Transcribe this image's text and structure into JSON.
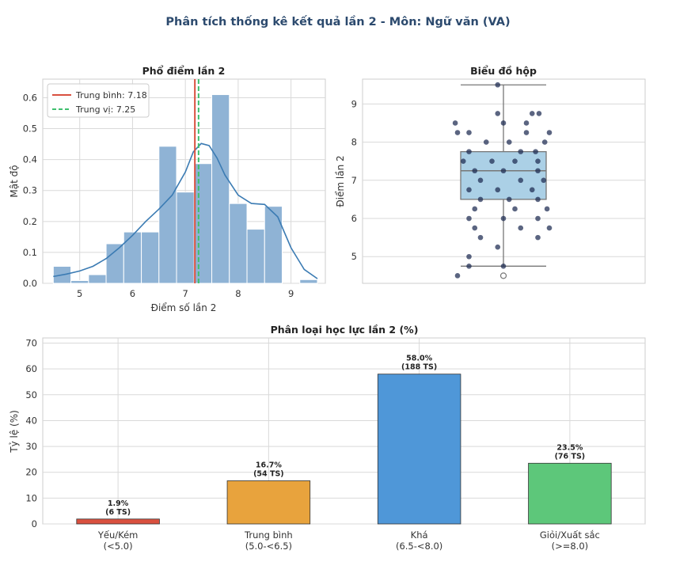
{
  "figure": {
    "suptitle": "Phân tích thống kê kết quả lần 2 - Môn: Ngữ văn (VA)",
    "colors": {
      "suptitle": "#2c4a6e",
      "hist_bar": "#8fb3d5",
      "kde_line": "#3b7bb3",
      "mean_line": "#d9503f",
      "median_line": "#3fbf6e",
      "box_fill": "#abd0e6",
      "dots": "#1c2a50",
      "grid": "#d9d9d9"
    }
  },
  "chart_data": [
    {
      "type": "bar",
      "subtype": "histogram_with_kde",
      "title": "Phổ điểm lần 2",
      "xlabel": "Điểm số lần 2",
      "ylabel": "Mật độ",
      "xlim": [
        4.3,
        9.65
      ],
      "ylim": [
        0,
        0.66
      ],
      "xticks": [
        5,
        6,
        7,
        8,
        9
      ],
      "yticks": [
        0.0,
        0.1,
        0.2,
        0.3,
        0.4,
        0.5,
        0.6
      ],
      "ytick_labels": [
        "0.0",
        "0.1",
        "0.2",
        "0.3",
        "0.4",
        "0.5",
        "0.6"
      ],
      "bins": [
        {
          "x0": 4.5,
          "x1": 4.833,
          "density": 0.055
        },
        {
          "x0": 4.833,
          "x1": 5.167,
          "density": 0.009
        },
        {
          "x0": 5.167,
          "x1": 5.5,
          "density": 0.028
        },
        {
          "x0": 5.5,
          "x1": 5.833,
          "density": 0.128
        },
        {
          "x0": 5.833,
          "x1": 6.167,
          "density": 0.166
        },
        {
          "x0": 6.167,
          "x1": 6.5,
          "density": 0.166
        },
        {
          "x0": 6.5,
          "x1": 6.833,
          "density": 0.443
        },
        {
          "x0": 6.833,
          "x1": 7.167,
          "density": 0.295
        },
        {
          "x0": 7.167,
          "x1": 7.5,
          "density": 0.387
        },
        {
          "x0": 7.5,
          "x1": 7.833,
          "density": 0.61
        },
        {
          "x0": 7.833,
          "x1": 8.167,
          "density": 0.258
        },
        {
          "x0": 8.167,
          "x1": 8.5,
          "density": 0.175
        },
        {
          "x0": 8.5,
          "x1": 8.833,
          "density": 0.249
        },
        {
          "x0": 9.167,
          "x1": 9.5,
          "density": 0.012
        }
      ],
      "kde": {
        "x": [
          4.5,
          4.75,
          5.0,
          5.25,
          5.5,
          5.75,
          6.0,
          6.25,
          6.5,
          6.75,
          7.0,
          7.15,
          7.3,
          7.45,
          7.6,
          7.75,
          8.0,
          8.25,
          8.5,
          8.75,
          9.0,
          9.25,
          9.5
        ],
        "y": [
          0.022,
          0.03,
          0.04,
          0.055,
          0.08,
          0.115,
          0.155,
          0.2,
          0.24,
          0.285,
          0.36,
          0.425,
          0.452,
          0.445,
          0.405,
          0.35,
          0.285,
          0.258,
          0.255,
          0.215,
          0.115,
          0.045,
          0.015
        ]
      },
      "mean": 7.18,
      "median": 7.25,
      "legend": {
        "placement": "top-left",
        "entries": [
          {
            "label": "Trung bình: 7.18",
            "style": "solid",
            "color": "#d9503f"
          },
          {
            "label": "Trung vị: 7.25",
            "style": "dashed",
            "color": "#3fbf6e"
          }
        ]
      },
      "grid": true
    },
    {
      "type": "scatter",
      "subtype": "boxplot_with_strip",
      "title": "Biểu đồ hộp",
      "ylabel": "Điểm lần 2",
      "ylim": [
        4.3,
        9.65
      ],
      "yticks": [
        5,
        6,
        7,
        8,
        9
      ],
      "box": {
        "q1": 6.5,
        "median": 7.25,
        "q3": 7.75,
        "whisker_low": 4.75,
        "whisker_high": 9.5
      },
      "outliers": [
        4.5
      ],
      "points": [
        {
          "offset": -0.05,
          "value": 9.5
        },
        {
          "offset": -0.05,
          "value": 8.75
        },
        {
          "offset": 0.25,
          "value": 8.75
        },
        {
          "offset": 0.31,
          "value": 8.75
        },
        {
          "offset": -0.42,
          "value": 8.5
        },
        {
          "offset": 0.0,
          "value": 8.5
        },
        {
          "offset": 0.2,
          "value": 8.5
        },
        {
          "offset": -0.3,
          "value": 8.25
        },
        {
          "offset": -0.4,
          "value": 8.25
        },
        {
          "offset": 0.4,
          "value": 8.25
        },
        {
          "offset": 0.2,
          "value": 8.25
        },
        {
          "offset": -0.15,
          "value": 8.0
        },
        {
          "offset": 0.05,
          "value": 8.0
        },
        {
          "offset": 0.36,
          "value": 8.0
        },
        {
          "offset": -0.3,
          "value": 7.75
        },
        {
          "offset": 0.15,
          "value": 7.75
        },
        {
          "offset": 0.28,
          "value": 7.75
        },
        {
          "offset": -0.35,
          "value": 7.5
        },
        {
          "offset": -0.1,
          "value": 7.5
        },
        {
          "offset": 0.1,
          "value": 7.5
        },
        {
          "offset": 0.3,
          "value": 7.5
        },
        {
          "offset": -0.25,
          "value": 7.25
        },
        {
          "offset": 0.0,
          "value": 7.25
        },
        {
          "offset": 0.3,
          "value": 7.25
        },
        {
          "offset": -0.2,
          "value": 7.0
        },
        {
          "offset": 0.15,
          "value": 7.0
        },
        {
          "offset": 0.35,
          "value": 7.0
        },
        {
          "offset": -0.3,
          "value": 6.75
        },
        {
          "offset": -0.05,
          "value": 6.75
        },
        {
          "offset": 0.25,
          "value": 6.75
        },
        {
          "offset": -0.2,
          "value": 6.5
        },
        {
          "offset": 0.05,
          "value": 6.5
        },
        {
          "offset": 0.3,
          "value": 6.5
        },
        {
          "offset": -0.25,
          "value": 6.25
        },
        {
          "offset": 0.1,
          "value": 6.25
        },
        {
          "offset": 0.38,
          "value": 6.25
        },
        {
          "offset": -0.3,
          "value": 6.0
        },
        {
          "offset": 0.0,
          "value": 6.0
        },
        {
          "offset": 0.3,
          "value": 6.0
        },
        {
          "offset": -0.25,
          "value": 5.75
        },
        {
          "offset": 0.15,
          "value": 5.75
        },
        {
          "offset": 0.4,
          "value": 5.75
        },
        {
          "offset": -0.2,
          "value": 5.5
        },
        {
          "offset": 0.3,
          "value": 5.5
        },
        {
          "offset": -0.05,
          "value": 5.25
        },
        {
          "offset": -0.3,
          "value": 5.0
        },
        {
          "offset": 0.0,
          "value": 4.75
        },
        {
          "offset": -0.3,
          "value": 4.75
        },
        {
          "offset": -0.4,
          "value": 4.5
        }
      ],
      "grid": true
    },
    {
      "type": "bar",
      "title": "Phân loại học lực lần 2 (%)",
      "ylabel": "Tỷ lệ (%)",
      "ylim": [
        0,
        72
      ],
      "yticks": [
        0,
        10,
        20,
        30,
        40,
        50,
        60,
        70
      ],
      "categories": [
        {
          "line1": "Yếu/Kém",
          "line2": "(<5.0)"
        },
        {
          "line1": "Trung bình",
          "line2": "(5.0-<6.5)"
        },
        {
          "line1": "Khá",
          "line2": "(6.5-<8.0)"
        },
        {
          "line1": "Giỏi/Xuất sắc",
          "line2": "(>=8.0)"
        }
      ],
      "values": [
        1.9,
        16.7,
        58.0,
        23.5
      ],
      "colors": [
        "#d9503f",
        "#e8a33d",
        "#4f97d8",
        "#5dc77a"
      ],
      "data_labels": [
        {
          "pct": "1.9%",
          "count": "(6 TS)"
        },
        {
          "pct": "16.7%",
          "count": "(54 TS)"
        },
        {
          "pct": "58.0%",
          "count": "(188 TS)"
        },
        {
          "pct": "23.5%",
          "count": "(76 TS)"
        }
      ],
      "grid": true
    }
  ]
}
